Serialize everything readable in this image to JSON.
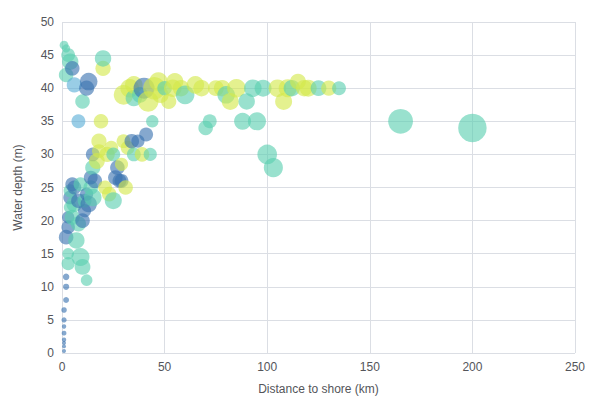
{
  "chart_data": {
    "type": "scatter",
    "xlabel": "Distance to shore (km)",
    "ylabel": "Water depth (m)",
    "xlim": [
      0,
      250
    ],
    "ylim": [
      0,
      50
    ],
    "xticks": [
      0,
      50,
      100,
      150,
      200,
      250
    ],
    "yticks": [
      0,
      5,
      10,
      15,
      20,
      25,
      30,
      35,
      40,
      45,
      50
    ],
    "grid": true,
    "x": [
      1,
      1,
      1,
      1,
      1,
      1,
      1,
      1,
      2,
      2,
      2,
      3,
      3,
      2,
      3,
      3,
      4,
      4,
      4,
      5,
      5,
      6,
      6,
      7,
      8,
      8,
      9,
      9,
      10,
      10,
      11,
      11,
      12,
      12,
      13,
      14,
      14,
      15,
      15,
      15,
      16,
      17,
      18,
      18,
      19,
      20,
      20,
      21,
      22,
      23,
      24,
      25,
      2,
      3,
      4,
      5,
      6,
      8,
      10,
      12,
      13,
      1,
      2,
      26,
      28,
      30,
      30,
      33,
      35,
      35,
      38,
      40,
      42,
      44,
      45,
      47,
      48,
      50,
      52,
      54,
      55,
      58,
      60,
      65,
      68,
      70,
      72,
      75,
      78,
      80,
      82,
      85,
      88,
      90,
      93,
      95,
      98,
      100,
      103,
      105,
      108,
      110,
      112,
      115,
      118,
      120,
      125,
      130,
      135,
      165,
      200,
      25,
      27,
      29,
      29,
      31,
      32,
      34,
      35,
      37,
      39,
      41,
      43
    ],
    "values": [
      0.3,
      1.0,
      1.5,
      2.0,
      3.0,
      4.0,
      5.0,
      6.5,
      8.0,
      10.0,
      11.5,
      13.5,
      15.0,
      17.5,
      19.0,
      20.5,
      22.0,
      23.5,
      24.5,
      25.5,
      20.5,
      22.5,
      25.0,
      17.0,
      19.5,
      23.0,
      25.5,
      14.5,
      13.0,
      20.0,
      21.5,
      23.0,
      11.0,
      24.0,
      22.5,
      25.0,
      26.5,
      23.5,
      28.0,
      30.0,
      26.0,
      29.0,
      30.5,
      32.0,
      35.0,
      43.0,
      44.5,
      25.0,
      30.0,
      24.0,
      31.0,
      23.0,
      42.0,
      45.0,
      44.0,
      43.0,
      40.5,
      35.0,
      38.0,
      40.0,
      41.0,
      46.5,
      46.0,
      26.5,
      26.0,
      32.0,
      39.0,
      40.0,
      38.5,
      40.5,
      39.0,
      40.0,
      38.0,
      35.0,
      40.0,
      41.0,
      39.0,
      40.0,
      38.0,
      40.0,
      41.0,
      40.0,
      39.0,
      40.5,
      40.0,
      34.0,
      35.0,
      40.0,
      40.0,
      39.0,
      38.0,
      40.0,
      35.0,
      38.0,
      40.0,
      35.0,
      40.0,
      30.0,
      28.0,
      40.0,
      38.0,
      40.0,
      40.0,
      41.0,
      40.0,
      40.0,
      40.0,
      40.0,
      40.0,
      35.0,
      34.0,
      30.0,
      28.0,
      26.0,
      28.5,
      25.0,
      31.0,
      32.0,
      30.0,
      32.0,
      30.0,
      33.0,
      30.0
    ],
    "sizes": [
      8,
      8,
      8,
      10,
      12,
      10,
      14,
      16,
      18,
      20,
      22,
      90,
      70,
      110,
      95,
      80,
      85,
      100,
      90,
      100,
      120,
      130,
      100,
      140,
      120,
      110,
      100,
      170,
      130,
      110,
      90,
      100,
      70,
      90,
      140,
      110,
      100,
      160,
      120,
      100,
      110,
      130,
      100,
      120,
      110,
      120,
      140,
      100,
      120,
      110,
      100,
      150,
      110,
      100,
      140,
      110,
      120,
      100,
      110,
      120,
      160,
      40,
      35,
      110,
      100,
      100,
      200,
      180,
      140,
      160,
      130,
      230,
      220,
      80,
      260,
      180,
      140,
      110,
      120,
      160,
      150,
      140,
      180,
      160,
      140,
      110,
      100,
      130,
      140,
      160,
      150,
      180,
      150,
      140,
      160,
      170,
      150,
      200,
      190,
      160,
      150,
      170,
      140,
      130,
      140,
      150,
      130,
      120,
      100,
      320,
      420,
      100,
      110,
      100,
      90,
      110,
      100,
      110,
      100,
      90,
      110,
      100,
      90
    ],
    "colors": [
      "#3a72b0",
      "#3a72b0",
      "#3a72b0",
      "#3a72b0",
      "#3a72b0",
      "#3a72b0",
      "#3a72b0",
      "#3a72b0",
      "#3a72b0",
      "#3a72b0",
      "#3a72b0",
      "#5bcfb0",
      "#5bcfb0",
      "#3a72b0",
      "#3a72b0",
      "#3a72b0",
      "#5bcfb0",
      "#3a72b0",
      "#5bcfb0",
      "#3a72b0",
      "#5bcfb0",
      "#5bcfb0",
      "#3a72b0",
      "#5bcfb0",
      "#5bcfb0",
      "#3a72b0",
      "#5bcfb0",
      "#5bcfb0",
      "#5bcfb0",
      "#3a72b0",
      "#3a72b0",
      "#5bcfb0",
      "#5bcfb0",
      "#3a72b0",
      "#3a72b0",
      "#5bcfb0",
      "#3a72b0",
      "#5bcfb0",
      "#5bcfb0",
      "#3a72b0",
      "#3a72b0",
      "#d4e84a",
      "#d4e84a",
      "#d4e84a",
      "#d4e84a",
      "#d4e84a",
      "#5bcfb0",
      "#d4e84a",
      "#d4e84a",
      "#d4e84a",
      "#d4e84a",
      "#5bcfb0",
      "#5bcfb0",
      "#5bcfb0",
      "#5bcfb0",
      "#3a72b0",
      "#5bafd6",
      "#5bafd6",
      "#5bcfb0",
      "#3a72b0",
      "#3a72b0",
      "#5bcfb0",
      "#5bcfb0",
      "#3a72b0",
      "#3a72b0",
      "#d4e84a",
      "#d4e84a",
      "#d4e84a",
      "#5bcfb0",
      "#d4e84a",
      "#5bcfb0",
      "#3a72b0",
      "#d4e84a",
      "#5bcfb0",
      "#d4e84a",
      "#d4e84a",
      "#d4e84a",
      "#5bcfb0",
      "#d4e84a",
      "#d4e84a",
      "#d4e84a",
      "#d4e84a",
      "#5bcfb0",
      "#d4e84a",
      "#d4e84a",
      "#5bcfb0",
      "#5bcfb0",
      "#d4e84a",
      "#d4e84a",
      "#5bcfb0",
      "#d4e84a",
      "#d4e84a",
      "#5bcfb0",
      "#5bcfb0",
      "#5bcfb0",
      "#5bcfb0",
      "#5bcfb0",
      "#5bcfb0",
      "#5bcfb0",
      "#d4e84a",
      "#d4e84a",
      "#d4e84a",
      "#5bcfb0",
      "#d4e84a",
      "#d4e84a",
      "#d4e84a",
      "#5bcfb0",
      "#d4e84a",
      "#5bcfb0",
      "#5bcfb0",
      "#5bcfb0",
      "#5bcfb0",
      "#3a72b0",
      "#3a72b0",
      "#d4e84a",
      "#d4e84a",
      "#d4e84a",
      "#3a72b0",
      "#5bcfb0",
      "#3a72b0",
      "#d4e84a",
      "#3a72b0",
      "#5bcfb0"
    ]
  }
}
